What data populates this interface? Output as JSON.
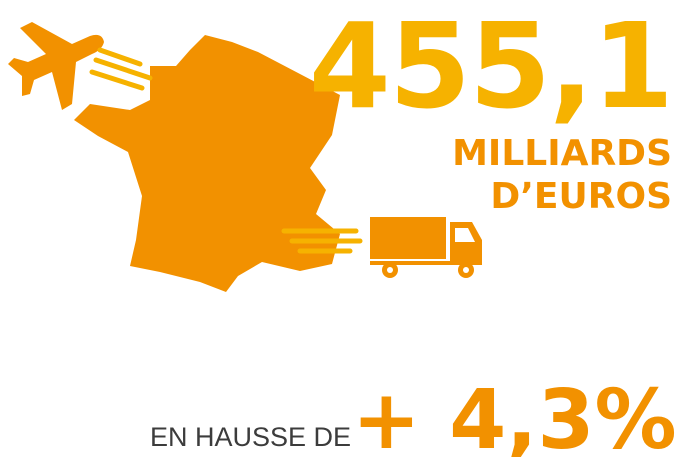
{
  "headline": {
    "amount": "455,1",
    "unit_line1": "MILLIARDS",
    "unit_line2": "D’EUROS"
  },
  "footer": {
    "prefix": "EN HAUSSE DE",
    "change": "+ 4,3%"
  }
}
